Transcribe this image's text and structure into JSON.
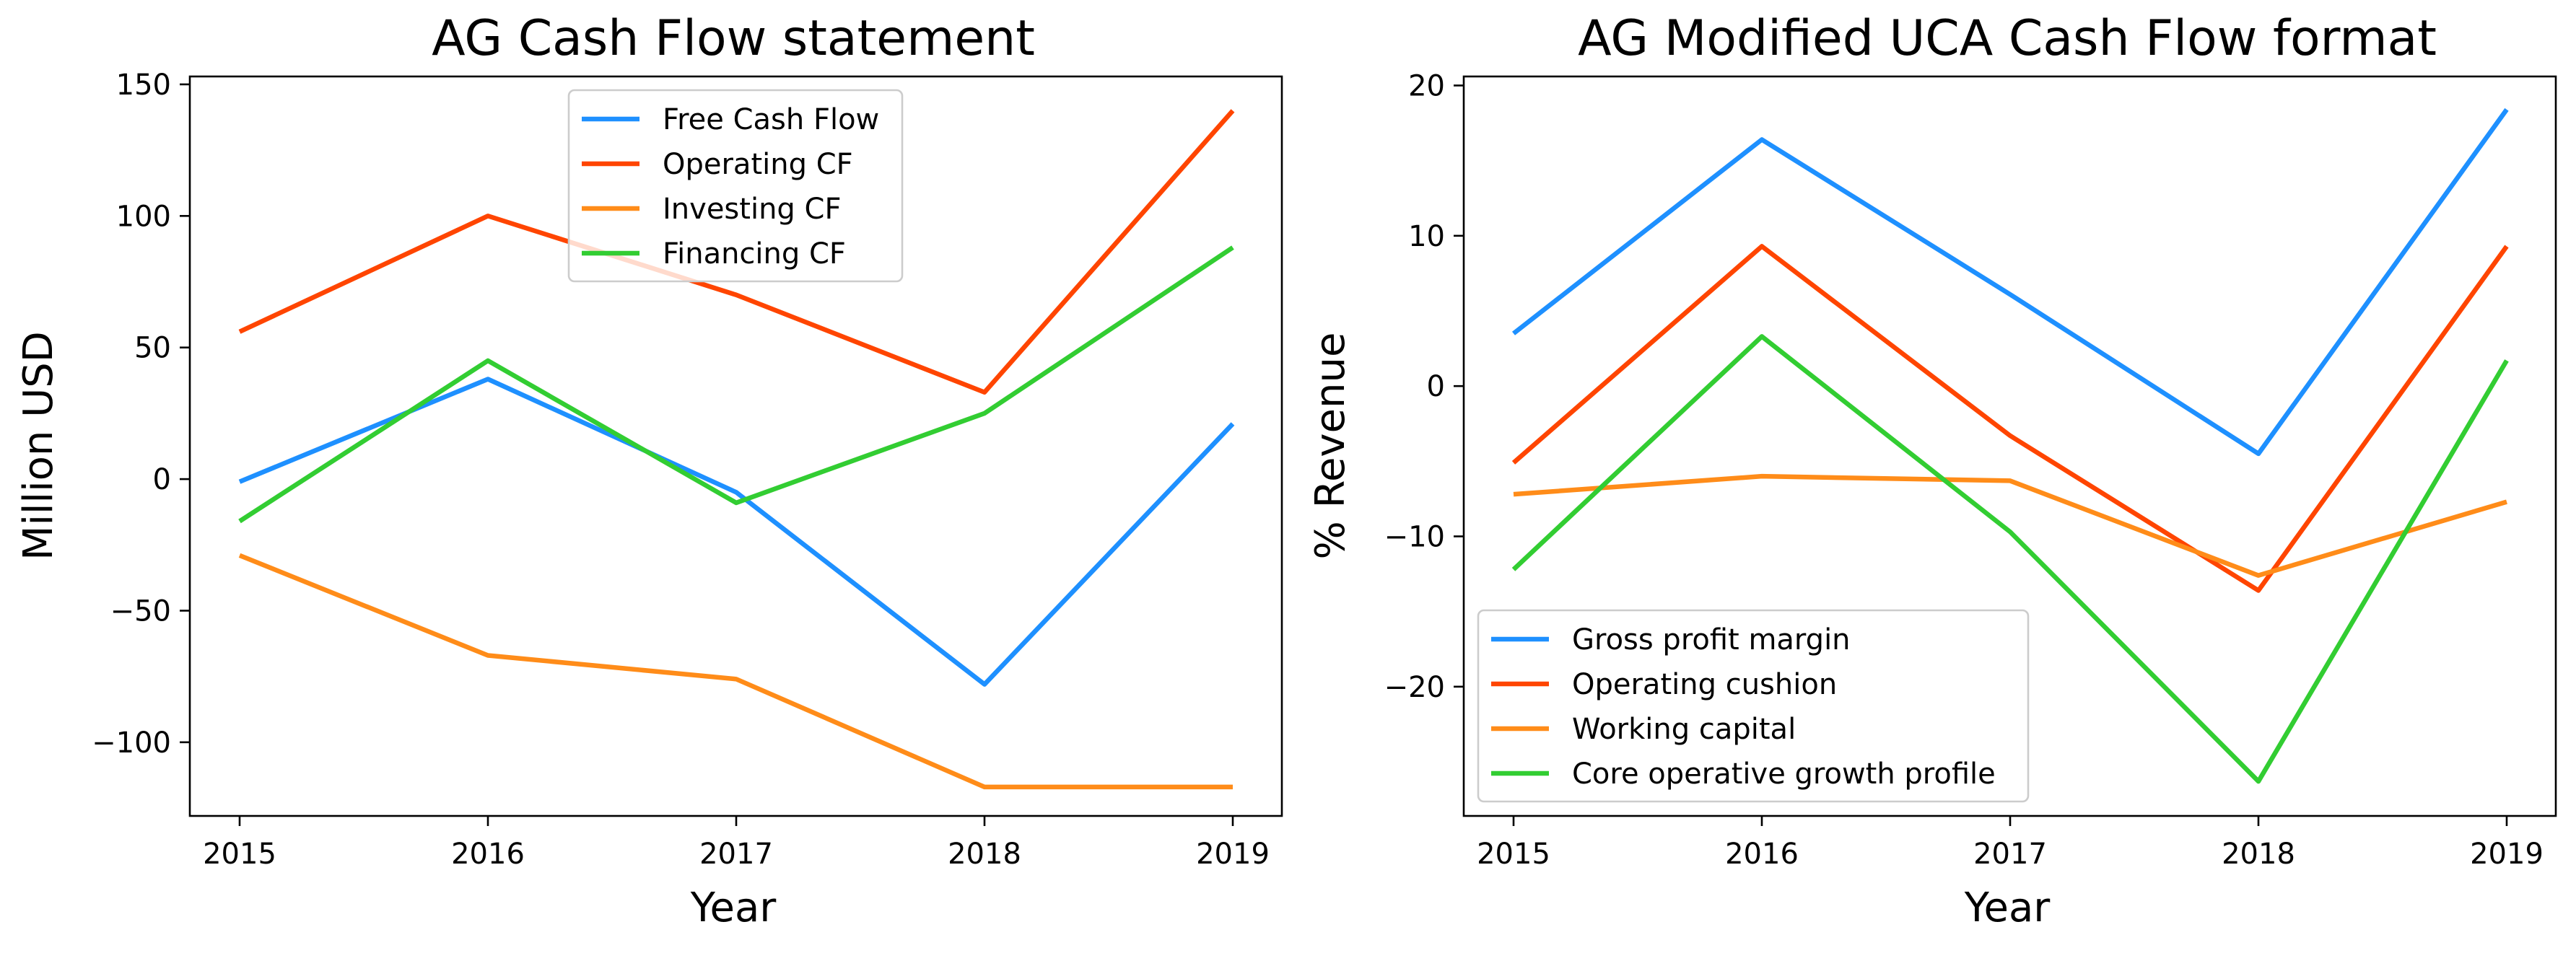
{
  "chart_data": [
    {
      "type": "line",
      "title": "AG Cash Flow statement",
      "xlabel": "Year",
      "ylabel": "Million USD",
      "x": [
        "2015",
        "2016",
        "2017",
        "2018",
        "2019"
      ],
      "ylim": [
        -128,
        153
      ],
      "yticks": [
        -100,
        -50,
        0,
        50,
        100,
        150
      ],
      "ytick_labels": [
        "−100",
        "−50",
        "0",
        "50",
        "100",
        "150"
      ],
      "grid": false,
      "legend_position": "top-center",
      "series": [
        {
          "name": "Free Cash Flow",
          "color": "#1e90ff",
          "values": [
            -1,
            38,
            -5,
            -78,
            21
          ]
        },
        {
          "name": "Operating CF",
          "color": "#ff4500",
          "values": [
            56,
            100,
            70,
            33,
            140
          ]
        },
        {
          "name": "Investing CF",
          "color": "#ff8c19",
          "values": [
            -29,
            -67,
            -76,
            -117,
            -117
          ]
        },
        {
          "name": "Financing CF",
          "color": "#32cd32",
          "values": [
            -16,
            45,
            -9,
            25,
            88
          ]
        }
      ]
    },
    {
      "type": "line",
      "title": "AG Modified UCA Cash Flow format",
      "xlabel": "Year",
      "ylabel": "% Revenue",
      "x": [
        "2015",
        "2016",
        "2017",
        "2018",
        "2019"
      ],
      "ylim": [
        -28.6,
        20.6
      ],
      "yticks": [
        -20,
        -10,
        0,
        10,
        20
      ],
      "ytick_labels": [
        "−20",
        "−10",
        "0",
        "10",
        "20"
      ],
      "grid": false,
      "legend_position": "lower-left",
      "series": [
        {
          "name": "Gross profit margin",
          "color": "#1e90ff",
          "values": [
            3.5,
            16.4,
            6.1,
            -4.5,
            18.4
          ]
        },
        {
          "name": "Operating cushion",
          "color": "#ff4500",
          "values": [
            -5.1,
            9.3,
            -3.3,
            -13.6,
            9.3
          ]
        },
        {
          "name": "Working capital",
          "color": "#ff8c19",
          "values": [
            -7.2,
            -6.0,
            -6.3,
            -12.6,
            -7.7
          ]
        },
        {
          "name": "Core operative growth profile",
          "color": "#32cd32",
          "values": [
            -12.2,
            3.3,
            -9.7,
            -26.3,
            1.7
          ]
        }
      ]
    }
  ]
}
